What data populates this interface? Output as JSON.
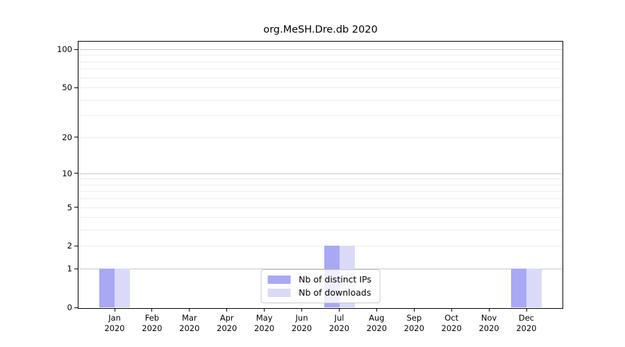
{
  "chart_data": {
    "type": "bar",
    "title": "org.MeSH.Dre.db 2020",
    "year": "2020",
    "categories": [
      "Jan",
      "Feb",
      "Mar",
      "Apr",
      "May",
      "Jun",
      "Jul",
      "Aug",
      "Sep",
      "Oct",
      "Nov",
      "Dec"
    ],
    "series": [
      {
        "name": "Nb of distinct IPs",
        "color": "#a8a8f5",
        "values": [
          1,
          0,
          0,
          0,
          0,
          0,
          2,
          0,
          0,
          0,
          0,
          1
        ]
      },
      {
        "name": "Nb of downloads",
        "color": "#dadaf8",
        "values": [
          1,
          0,
          0,
          0,
          0,
          0,
          2,
          0,
          0,
          0,
          0,
          1
        ]
      }
    ],
    "y_axis": {
      "scale": "log1p",
      "max": 100,
      "ticks": [
        0,
        1,
        2,
        5,
        10,
        20,
        50,
        100
      ],
      "major_gridlines": [
        1,
        10,
        100
      ],
      "minor_gridlines": [
        2,
        3,
        4,
        5,
        6,
        7,
        8,
        9,
        20,
        30,
        40,
        50,
        60,
        70,
        80,
        90
      ]
    },
    "legend": {
      "position": "lower center",
      "entries": [
        "Nb of distinct IPs",
        "Nb of downloads"
      ]
    },
    "colors": {
      "axis": "#000000",
      "major_grid": "#c7c7c7",
      "minor_grid": "#ededed",
      "legend_border": "#c9c9c9"
    }
  }
}
